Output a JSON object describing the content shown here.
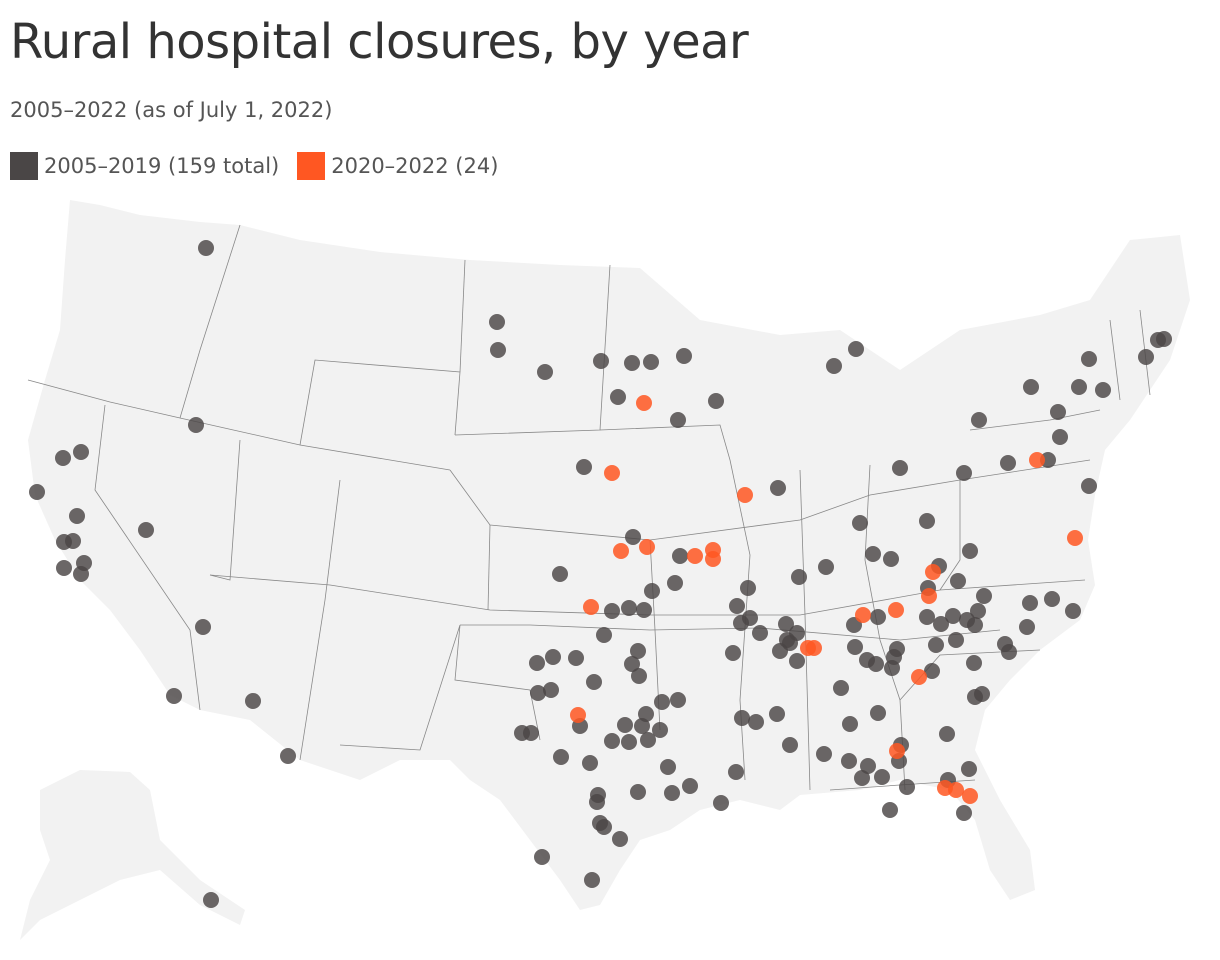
{
  "title": "Rural hospital closures, by year",
  "subtitle": "2005–2022 (as of July 1, 2022)",
  "legend": [
    {
      "label": "2005–2019 (159 total)",
      "color": "#4a4646"
    },
    {
      "label": "2020–2022 (24)",
      "color": "#ff5722"
    }
  ],
  "colors": {
    "land": "#f2f2f2",
    "border": "#888888",
    "early": "#4a4646",
    "recent": "#ff5722"
  },
  "map_data": {
    "type": "dot-map",
    "region": "United States",
    "series": [
      {
        "name": "2005–2019 (159 total)",
        "color": "#4a4646",
        "count": 159
      },
      {
        "name": "2020–2022 (24)",
        "color": "#ff5722",
        "count": 24
      }
    ]
  }
}
